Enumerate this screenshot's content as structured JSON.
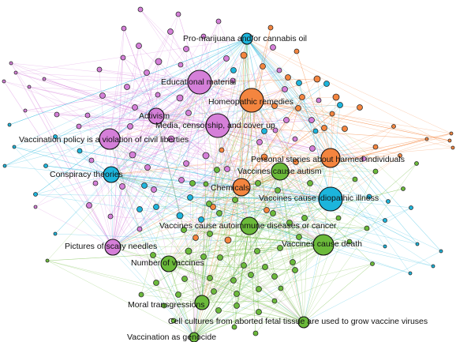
{
  "colors": {
    "purple": "#d57fd9",
    "orange": "#f4853f",
    "blue": "#1cb5dc",
    "green": "#6bba3a"
  },
  "labels": [
    {
      "id": "pro-marijuana",
      "text": "Pro-marijuana and/or cannabis oil"
    },
    {
      "id": "educational-material",
      "text": "Educational material"
    },
    {
      "id": "homeopathic-remedies",
      "text": "Homeopathic remedies"
    },
    {
      "id": "activism",
      "text": "Activism"
    },
    {
      "id": "media-censorship",
      "text": "Media, censorship, and cover up"
    },
    {
      "id": "vaccination-policy",
      "text": "Vaccination policy is a violation of civil liberties"
    },
    {
      "id": "personal-stories",
      "text": "Personal stories about harmed individuals"
    },
    {
      "id": "vaccines-cause-autism",
      "text": "Vaccines cause autism"
    },
    {
      "id": "conspiracy-theories",
      "text": "Conspiracy theories"
    },
    {
      "id": "chemicals",
      "text": "Chemicals"
    },
    {
      "id": "vaccines-idiopathic",
      "text": "Vaccines cause idiopathic illness"
    },
    {
      "id": "vaccines-autoimmune",
      "text": "Vaccines cause autoimmune diseases or cancer"
    },
    {
      "id": "vaccines-death",
      "text": "Vaccines cause death"
    },
    {
      "id": "scary-needles",
      "text": "Pictures of scary needles"
    },
    {
      "id": "number-of-vaccines",
      "text": "Number of vaccines"
    },
    {
      "id": "moral-transgressions",
      "text": "Moral transgressions"
    },
    {
      "id": "fetal-tissue",
      "text": "Cell cultures from aborted fetal tissue are used to grow vaccine viruses"
    },
    {
      "id": "vaccination-genocide",
      "text": "Vaccination as genocide"
    }
  ]
}
